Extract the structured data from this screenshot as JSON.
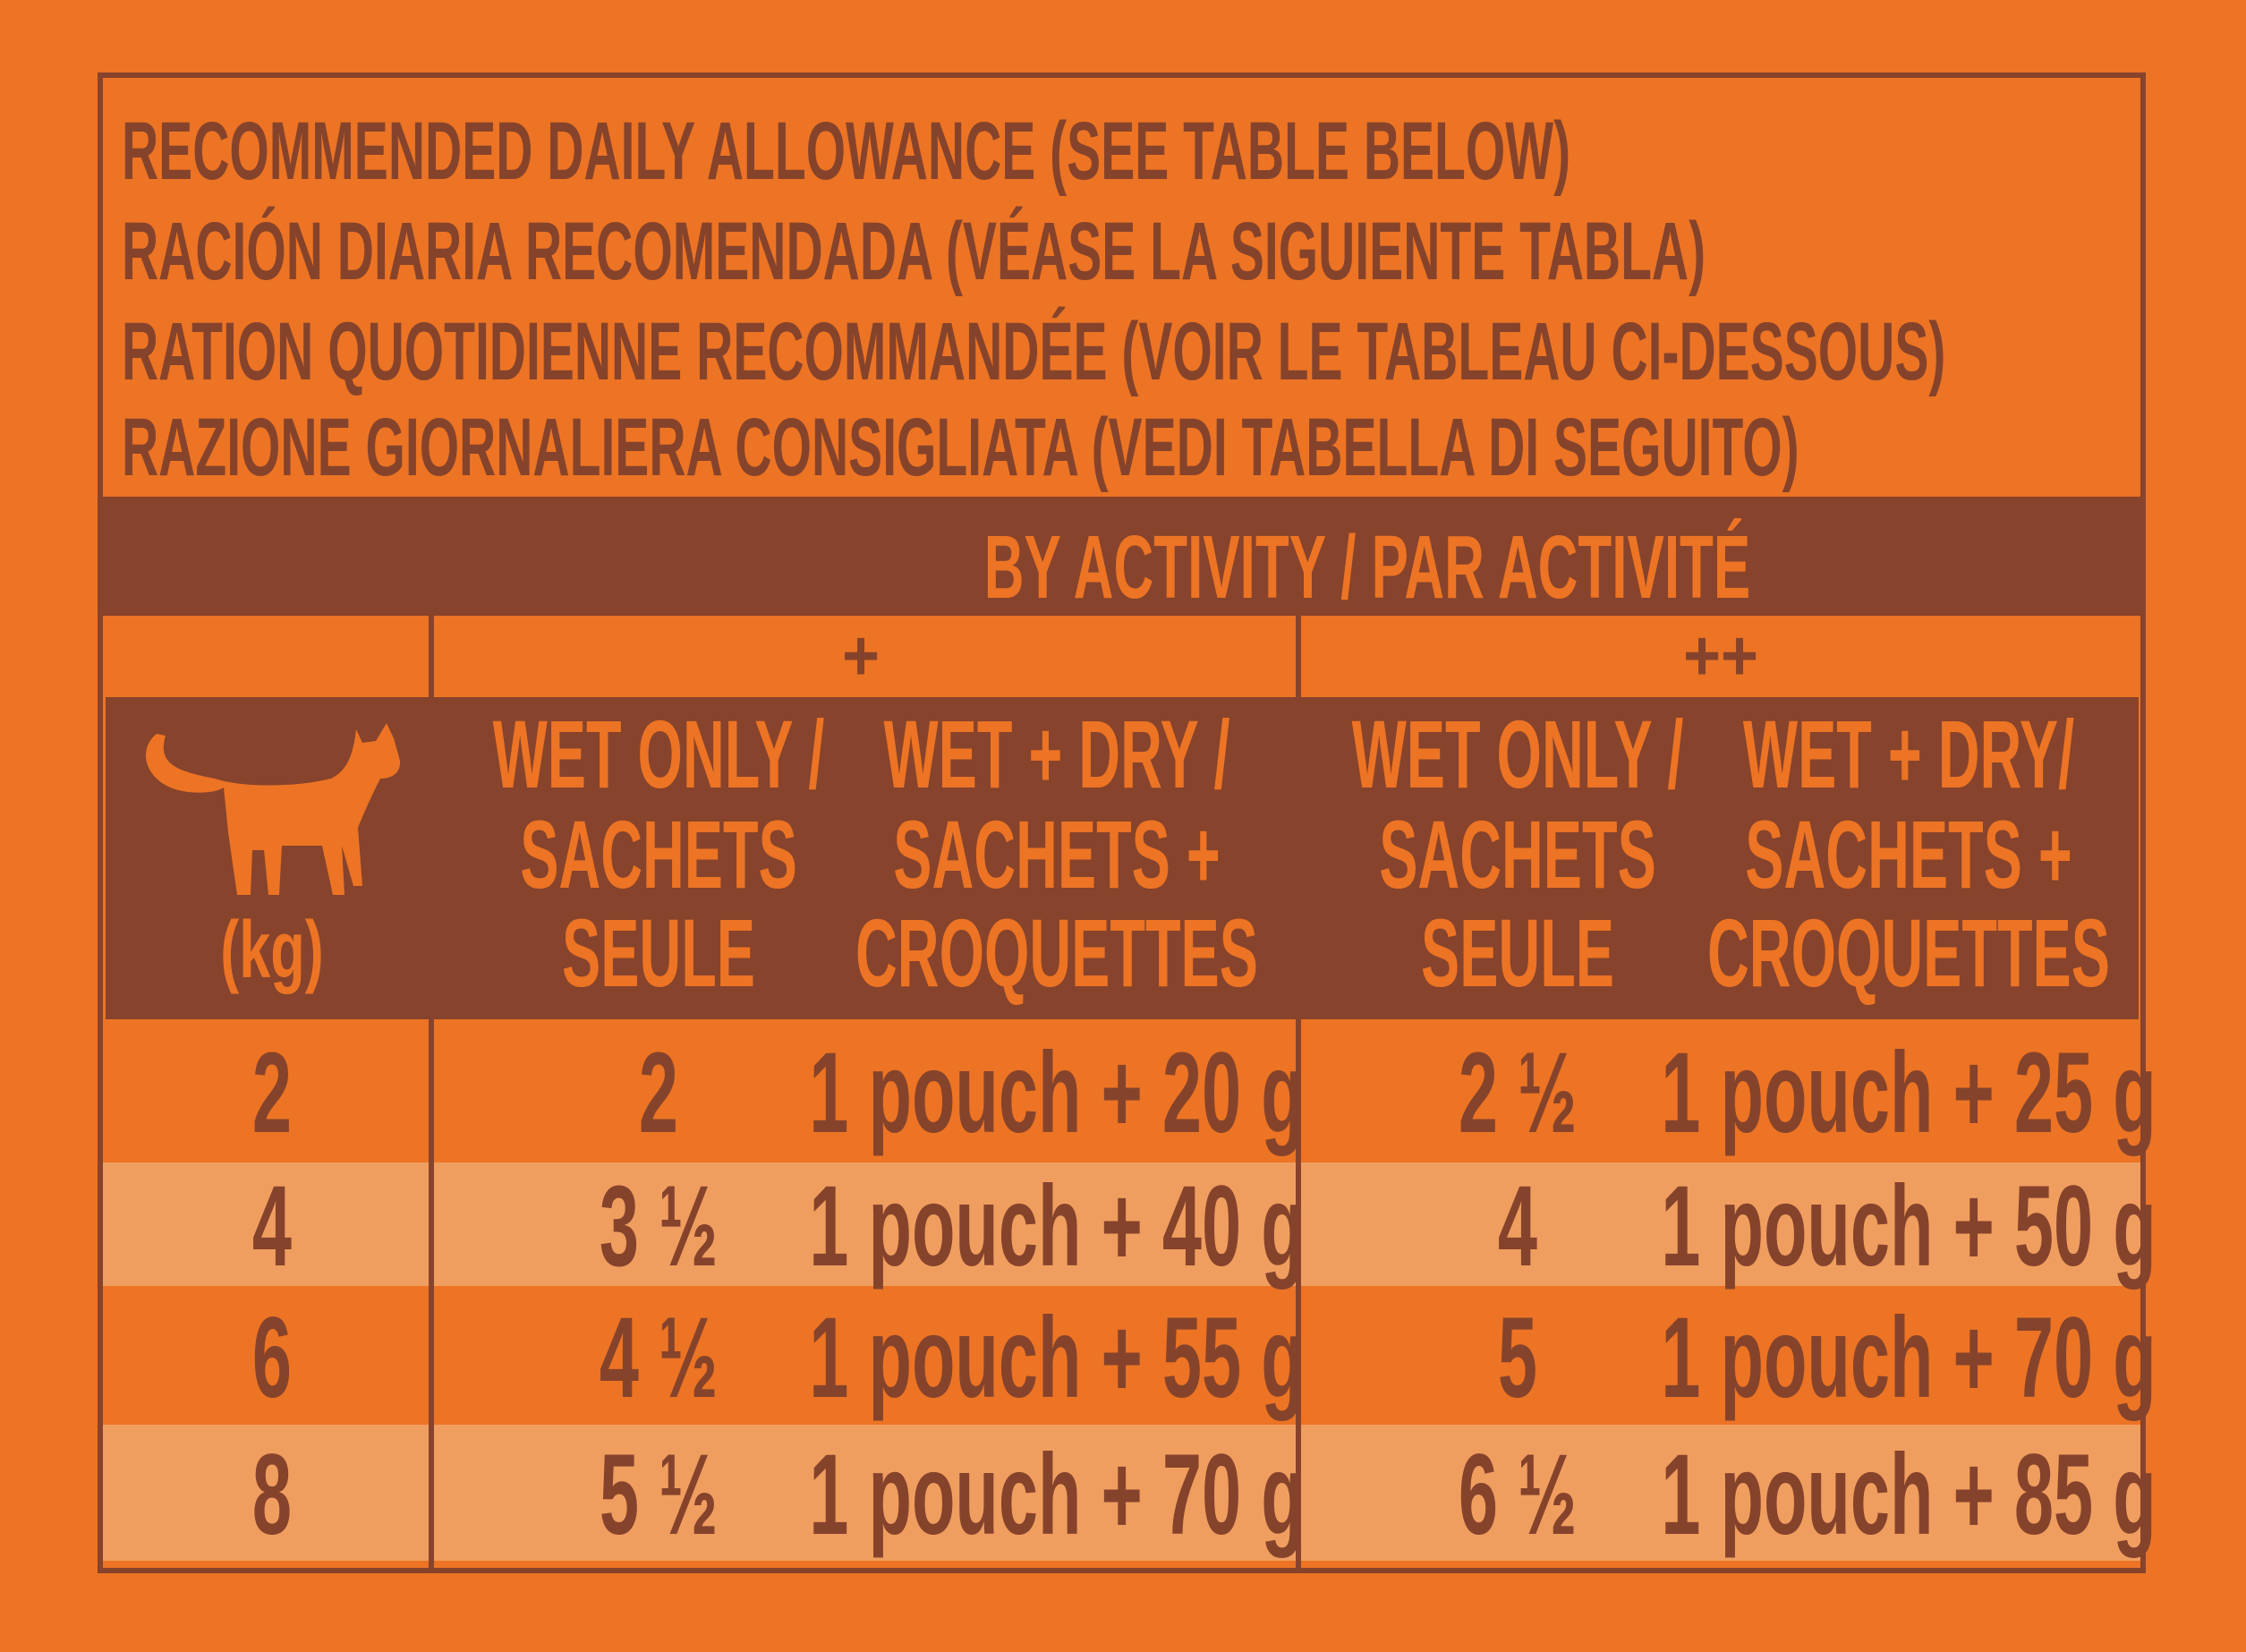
{
  "header": {
    "lines": [
      "RECOMMENDED DAILY ALLOWANCE (SEE TABLE BELOW)",
      "RACIÓN DIARIA RECOMENDADA (VÉASE LA SIGUIENTE TABLA)",
      "RATION QUOTIDIENNE RECOMMANDÉE (VOIR LE TABLEAU CI-DESSOUS)",
      "RAZIONE GIORNALIERA CONSIGLIATA (VEDI TABELLA DI SEGUITO)"
    ]
  },
  "table": {
    "activity_header": "BY ACTIVITY / PAR ACTIVITÉ",
    "groups": [
      "+",
      "++"
    ],
    "weight_header": "(kg)",
    "columns": [
      [
        "WET ONLY /",
        "SACHETS",
        "SEULE"
      ],
      [
        "WET + DRY /",
        "SACHETS +",
        "CROQUETTES"
      ],
      [
        "WET ONLY /",
        "SACHETS",
        "SEULE"
      ],
      [
        "WET + DRY/",
        "SACHETS +",
        "CROQUETTES"
      ]
    ],
    "rows": [
      [
        "2",
        "2",
        "1 pouch + 20 g",
        "2 ½",
        "1 pouch + 25 g"
      ],
      [
        "4",
        "3 ½",
        "1 pouch + 40 g",
        "4",
        "1 pouch + 50 g"
      ],
      [
        "6",
        "4 ½",
        "1 pouch + 55 g",
        "5",
        "1 pouch + 70 g"
      ],
      [
        "8",
        "5 ½",
        "1 pouch + 70 g",
        "6 ½",
        "1 pouch + 85 g"
      ]
    ]
  }
}
